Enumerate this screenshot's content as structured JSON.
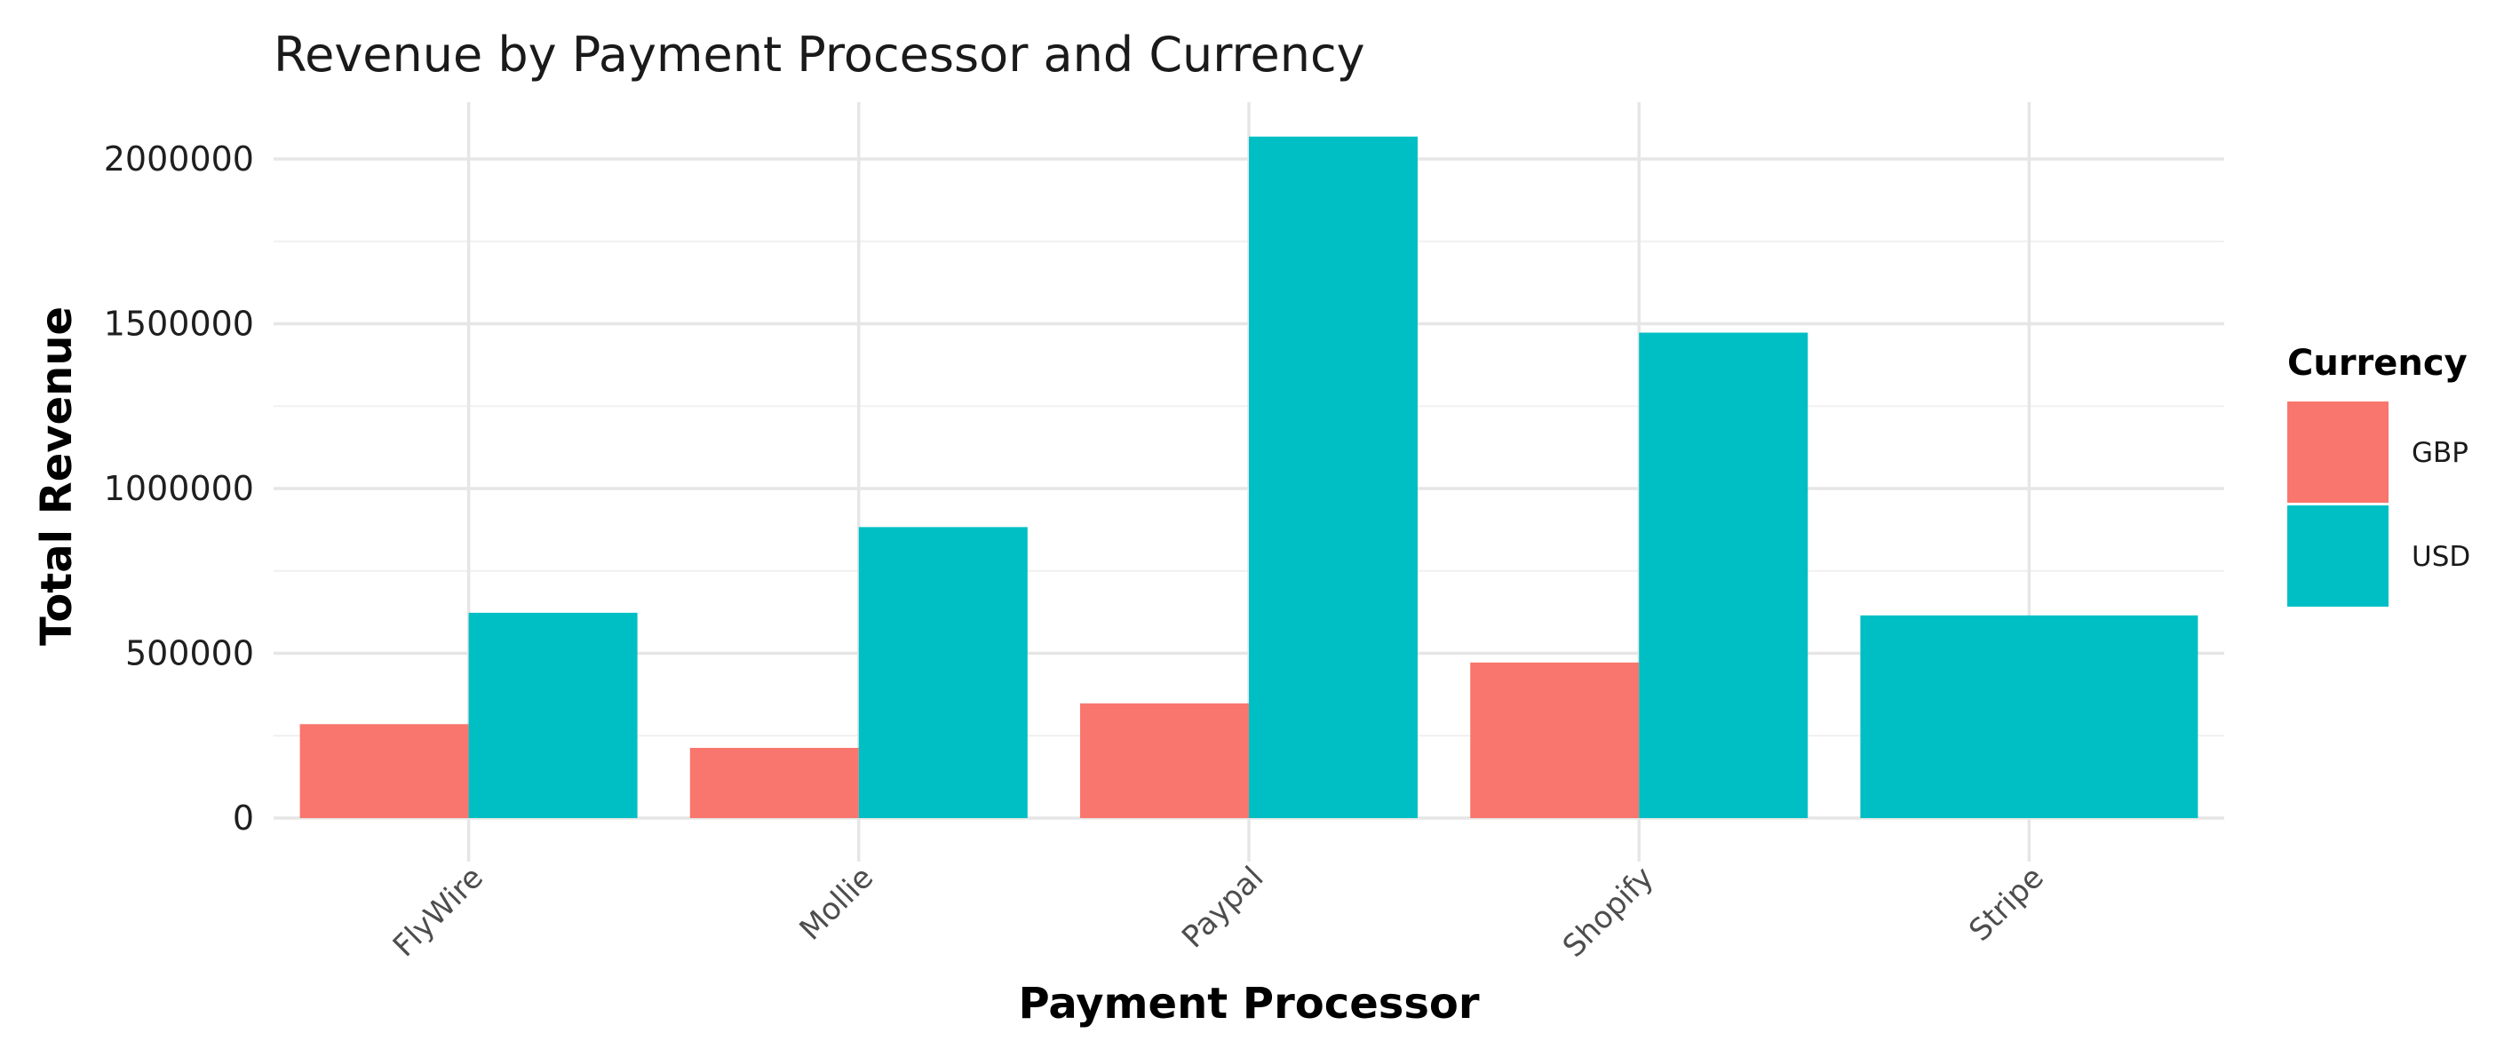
{
  "chart_data": {
    "type": "bar",
    "title": "Revenue by Payment Processor and Currency",
    "xlabel": "Payment Processor",
    "ylabel": "Total Revenue",
    "categories": [
      "FlyWire",
      "Mollie",
      "Paypal",
      "Shopify",
      "Stripe"
    ],
    "series": [
      {
        "name": "GBP",
        "color": "#F8766D",
        "values": [
          285000,
          213000,
          348000,
          472000,
          null
        ]
      },
      {
        "name": "USD",
        "color": "#00BFC4",
        "values": [
          623000,
          883000,
          2068000,
          1473000,
          615000
        ]
      }
    ],
    "yticks": [
      0,
      500000,
      1000000,
      1500000,
      2000000
    ],
    "ytick_labels": [
      "0",
      "500000",
      "1000000",
      "1500000",
      "2000000"
    ],
    "ylim": [
      -60000,
      2180000
    ],
    "grid": true,
    "legend": {
      "title": "Currency",
      "position": "right"
    }
  }
}
